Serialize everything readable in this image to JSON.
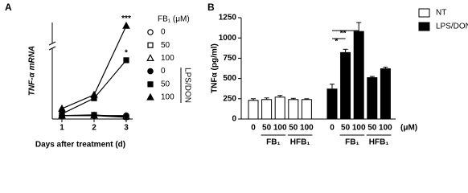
{
  "chart_data": [
    {
      "type": "line",
      "panel": "A",
      "ylabel": "TNF-α mRNA",
      "xlabel": "Days after treatment (d)",
      "x": [
        1,
        2,
        3
      ],
      "xlim": [
        0.7,
        3.2
      ],
      "xticks": [
        1,
        2,
        3
      ],
      "ylim": [
        0,
        80
      ],
      "ybreak": [
        20,
        60
      ],
      "legend_title": "FB₁ (μM)",
      "group_label": "LPS/DON",
      "series": [
        {
          "name": "0",
          "marker": "circle",
          "filled": false,
          "values": [
            1,
            1,
            0.5
          ]
        },
        {
          "name": "50",
          "marker": "square",
          "filled": false,
          "values": [
            1,
            1.2,
            0.6
          ]
        },
        {
          "name": "100",
          "marker": "triangle",
          "filled": false,
          "values": [
            1,
            1,
            0.8
          ]
        },
        {
          "name": "0",
          "marker": "circle",
          "filled": true,
          "values": [
            1,
            1,
            1
          ]
        },
        {
          "name": "50",
          "marker": "square",
          "filled": true,
          "values": [
            1.5,
            6,
            17
          ],
          "annotation": "*"
        },
        {
          "name": "100",
          "marker": "triangle",
          "filled": true,
          "values": [
            3,
            7,
            78
          ],
          "annotation": "***"
        }
      ]
    },
    {
      "type": "bar",
      "panel": "B",
      "ylabel": "TNFα (pg/ml)",
      "ylim": [
        0,
        1250
      ],
      "yticks": [
        0,
        250,
        500,
        750,
        1000,
        1250
      ],
      "categories": [
        "0",
        "50",
        "100",
        "50",
        "100"
      ],
      "groups": [
        "FB₁",
        "HFB₁"
      ],
      "unit": "(μM)",
      "series": [
        {
          "name": "NT",
          "color": "#ffffff",
          "values": [
            230,
            240,
            270,
            240,
            240
          ],
          "errors": [
            20,
            20,
            20,
            15,
            10
          ]
        },
        {
          "name": "LPS/DON",
          "color": "#000000",
          "values": [
            370,
            820,
            1080,
            510,
            620
          ],
          "errors": [
            60,
            40,
            110,
            15,
            20
          ]
        }
      ],
      "significance": [
        "*",
        "**"
      ]
    }
  ]
}
